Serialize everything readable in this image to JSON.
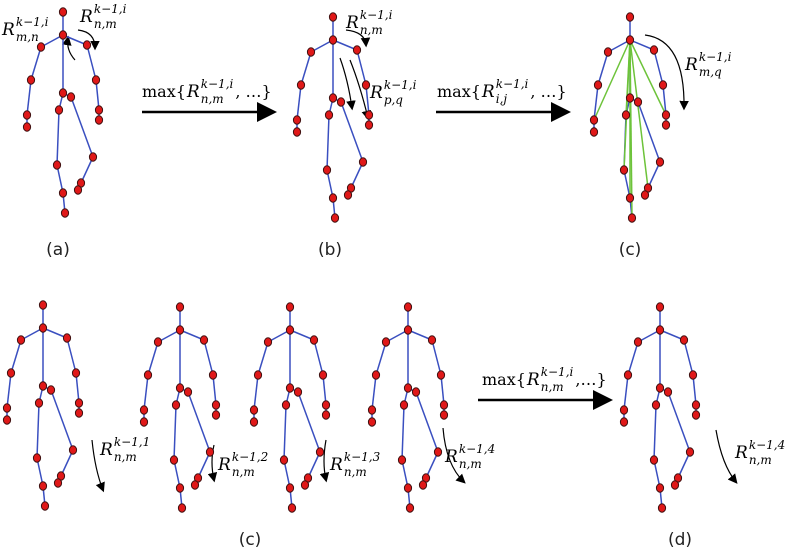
{
  "panels": [
    {
      "label": "(a)"
    },
    {
      "label": "(b)"
    },
    {
      "label": "(c)"
    },
    {
      "label": "(c)"
    },
    {
      "label": "(d)"
    }
  ],
  "annotations": [
    {
      "base": "R",
      "sup": "k−1,i",
      "sub": "m,n"
    },
    {
      "base": "R",
      "sup": "k−1,i",
      "sub": "n,m"
    },
    {
      "base": "R",
      "sup": "k−1,i",
      "sub": "n,m"
    },
    {
      "base": "R",
      "sup": "k−1,i",
      "sub": "p,q"
    },
    {
      "base": "R",
      "sup": "k−1,i",
      "sub": "m,q"
    },
    {
      "base": "R",
      "sup": "k−1,1",
      "sub": "n,m"
    },
    {
      "base": "R",
      "sup": "k−1,2",
      "sub": "n,m"
    },
    {
      "base": "R",
      "sup": "k−1,3",
      "sub": "n,m"
    },
    {
      "base": "R",
      "sup": "k−1,4",
      "sub": "n,m"
    },
    {
      "base": "R",
      "sup": "k−1,4",
      "sub": "n,m"
    }
  ],
  "operators": [
    {
      "prefix": "max{",
      "base": "R",
      "sup": "k−1,i",
      "sub": "n,m",
      "suffix": ", …}"
    },
    {
      "prefix": "max{",
      "base": "R",
      "sup": "k−1,i",
      "sub": "i,j",
      "suffix": ", …}"
    },
    {
      "prefix": "max{",
      "base": "R",
      "sup": "k−1,i",
      "sub": "n,m",
      "suffix": ",…}"
    }
  ]
}
